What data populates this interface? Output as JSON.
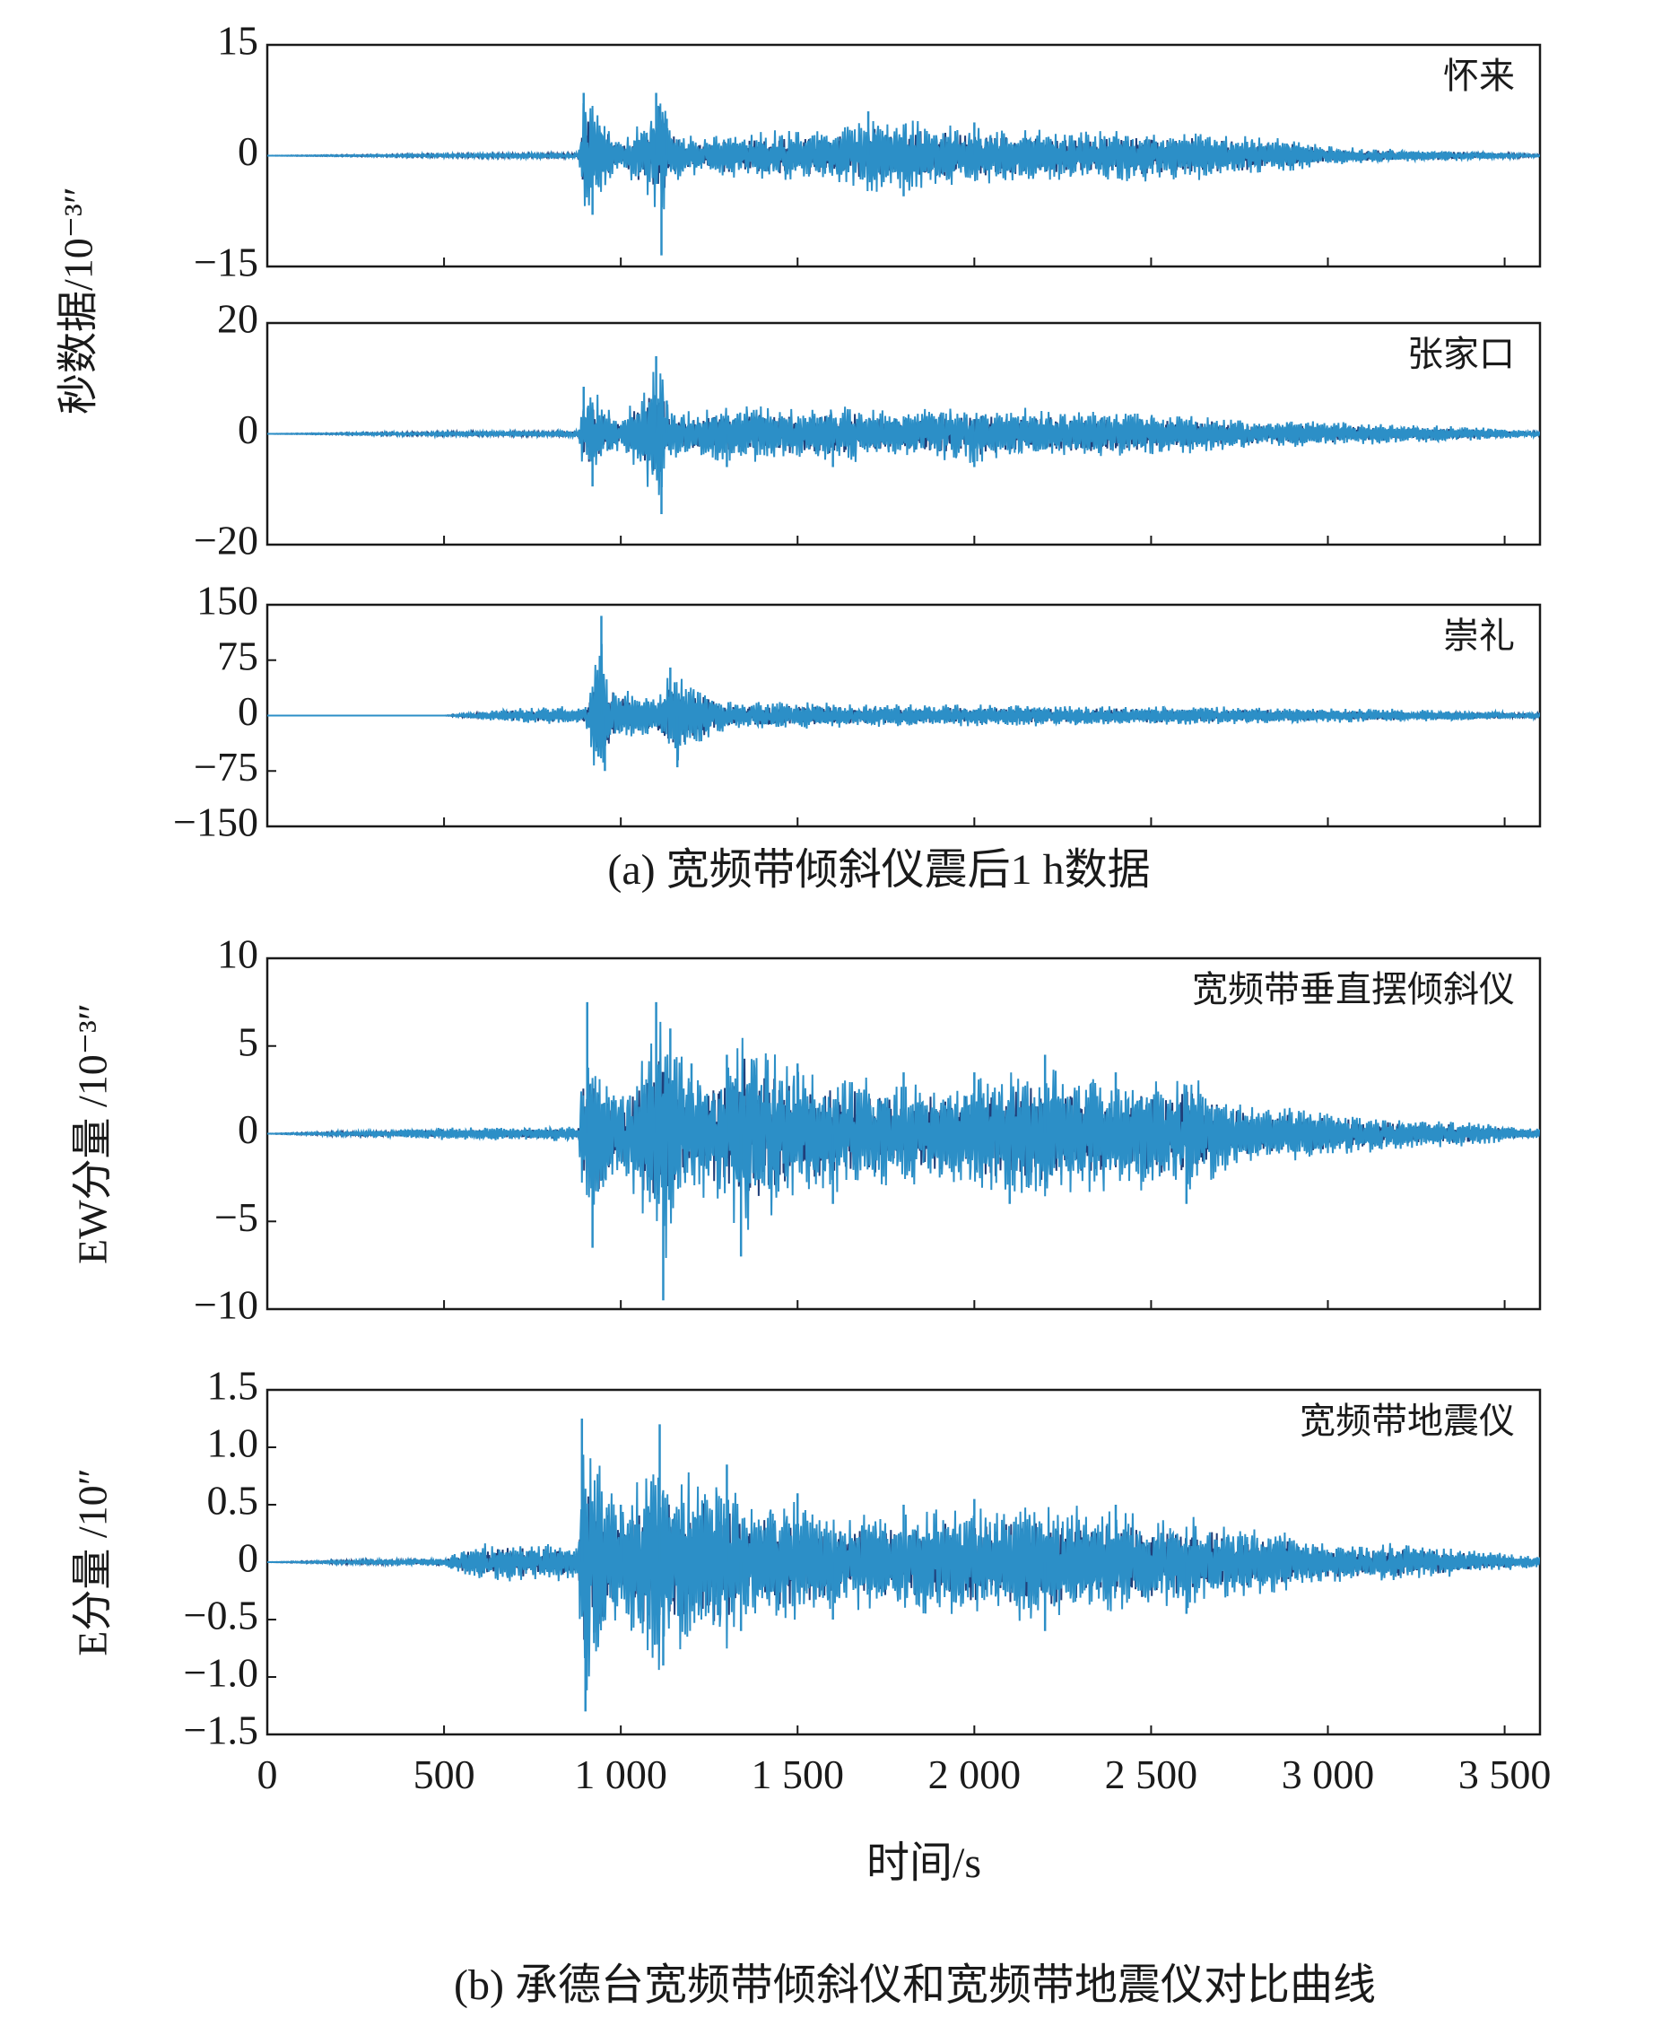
{
  "figure": {
    "caption_a": "(a) 宽频带倾斜仪震后1 h数据",
    "caption_b": "(b) 承德台宽频带倾斜仪和宽频带地震仪对比曲线",
    "ylabel_group_a": "秒数据/10⁻³″",
    "xlabel": "时间/s",
    "x_ticks": [
      "0",
      "500",
      "1 000",
      "1 500",
      "2 000",
      "2 500",
      "3 000",
      "3 500"
    ],
    "colors": {
      "trace_dark": "#1f3f7a",
      "trace_light": "#2c8fc7",
      "axis": "#1a1a1a"
    }
  },
  "chart_data": [
    {
      "type": "line",
      "panel": "a",
      "title": "怀来",
      "ylabel": "",
      "xlim": [
        0,
        3600
      ],
      "ylim": [
        -15,
        15
      ],
      "y_ticks": [
        "15",
        "0",
        "−15"
      ],
      "grid": false,
      "x": [
        0,
        500,
        880,
        895,
        920,
        1000,
        1100,
        1115,
        1130,
        1200,
        1300,
        1500,
        1600,
        1700,
        1800,
        2000,
        2200,
        2400,
        2500,
        2600,
        2800,
        2900,
        3000,
        3200,
        3400,
        3600
      ],
      "series": [
        {
          "values": [
            0,
            0.3,
            0.5,
            8.5,
            -8,
            2,
            8.5,
            -13.5,
            5,
            3,
            -3.5,
            4,
            -4,
            6,
            -5.5,
            4.5,
            -4,
            4,
            -4,
            4,
            -3,
            2.5,
            -1.5,
            1,
            -0.8,
            0.2
          ]
        }
      ]
    },
    {
      "type": "line",
      "panel": "a",
      "title": "张家口",
      "ylabel": "",
      "xlim": [
        0,
        3600
      ],
      "ylim": [
        -20,
        20
      ],
      "y_ticks": [
        "20",
        "0",
        "−20"
      ],
      "grid": false,
      "x": [
        0,
        500,
        880,
        895,
        920,
        1000,
        1100,
        1115,
        1130,
        1200,
        1300,
        1500,
        1600,
        1800,
        2000,
        2200,
        2400,
        2600,
        2800,
        3000,
        3200,
        3400,
        3600
      ],
      "series": [
        {
          "values": [
            0,
            0.5,
            0.8,
            8.5,
            -9.5,
            3,
            14,
            -14.5,
            6,
            5,
            -6,
            5.5,
            -6,
            5,
            -6,
            5,
            -5,
            4,
            -3,
            2.5,
            -2,
            1.5,
            0.5
          ]
        }
      ]
    },
    {
      "type": "line",
      "panel": "a",
      "title": "崇礼",
      "ylabel": "",
      "xlim": [
        0,
        3600
      ],
      "ylim": [
        -150,
        150
      ],
      "y_ticks": [
        "150",
        "75",
        "0",
        "−75",
        "−150"
      ],
      "grid": false,
      "x": [
        0,
        500,
        700,
        900,
        945,
        955,
        990,
        1100,
        1140,
        1160,
        1300,
        1500,
        1700,
        2000,
        2300,
        2600,
        2900,
        3200,
        3600
      ],
      "series": [
        {
          "values": [
            0,
            0,
            12,
            15,
            135,
            -75,
            40,
            30,
            65,
            -70,
            22,
            -22,
            18,
            -18,
            15,
            -15,
            12,
            -10,
            5
          ]
        }
      ]
    },
    {
      "type": "line",
      "panel": "b",
      "title": "宽频带垂直摆倾斜仪",
      "ylabel": "EW分量 /10⁻³″",
      "xlim": [
        0,
        3600
      ],
      "ylim": [
        -10,
        10
      ],
      "y_ticks": [
        "10",
        "5",
        "0",
        "−5",
        "−10"
      ],
      "grid": false,
      "x": [
        0,
        500,
        880,
        905,
        920,
        1000,
        1100,
        1120,
        1140,
        1200,
        1300,
        1340,
        1500,
        1600,
        1800,
        2000,
        2100,
        2200,
        2400,
        2600,
        2700,
        2800,
        3000,
        3200,
        3400,
        3600
      ],
      "series": [
        {
          "values": [
            0,
            0.4,
            0.5,
            7.5,
            -6.5,
            2.5,
            7.5,
            -9.5,
            6,
            4,
            4.5,
            -7,
            4,
            -4,
            3.5,
            3.5,
            -4,
            4.5,
            3.5,
            -4,
            2.5,
            2,
            -1.5,
            1,
            -0.8,
            0.3
          ]
        }
      ]
    },
    {
      "type": "line",
      "panel": "b",
      "title": "宽频带地震仪",
      "ylabel": "E分量 /10″",
      "xlim": [
        0,
        3600
      ],
      "ylim": [
        -1.5,
        1.5
      ],
      "y_ticks": [
        "1.5",
        "1.0",
        "0.5",
        "0",
        "−0.5",
        "−1.0",
        "−1.5"
      ],
      "grid": false,
      "x": [
        0,
        500,
        600,
        880,
        890,
        900,
        1000,
        1110,
        1120,
        1300,
        1340,
        1500,
        1600,
        1800,
        2000,
        2200,
        2400,
        2600,
        2800,
        3000,
        3200,
        3400,
        3600
      ],
      "series": [
        {
          "values": [
            0,
            0.05,
            0.2,
            0.2,
            1.25,
            -1.3,
            0.5,
            1.2,
            -0.9,
            0.85,
            -0.6,
            0.6,
            -0.5,
            0.5,
            0.55,
            -0.6,
            0.5,
            -0.45,
            0.35,
            -0.2,
            0.2,
            -0.12,
            0.05
          ]
        }
      ]
    }
  ]
}
